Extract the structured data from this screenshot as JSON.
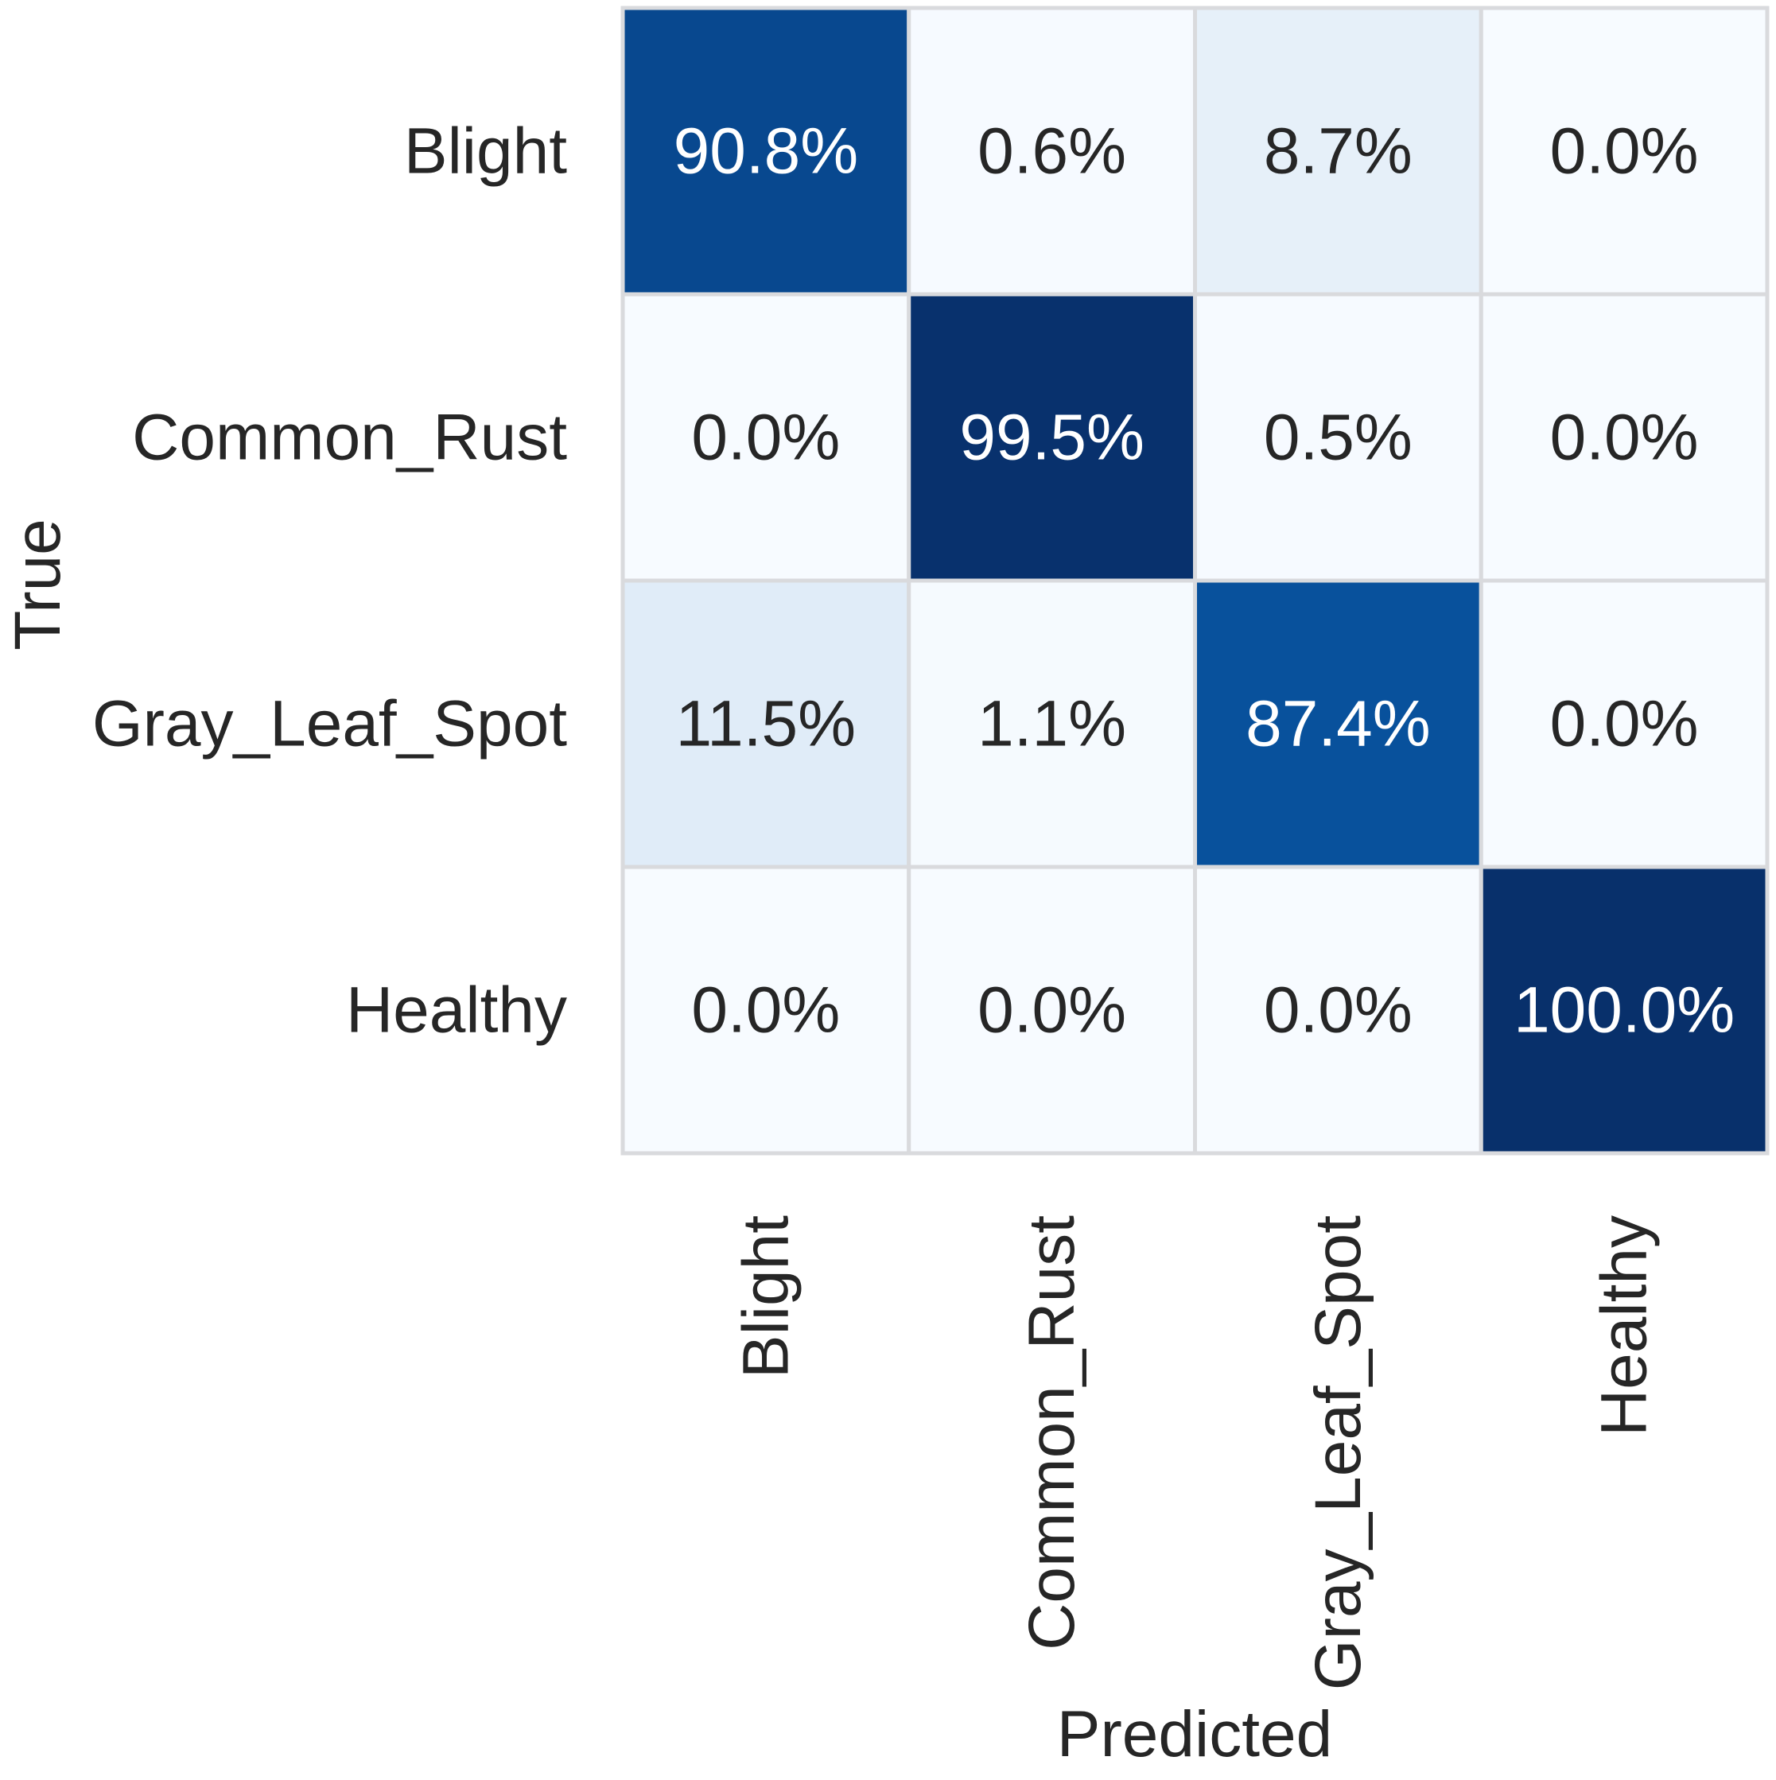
{
  "chart_data": {
    "type": "heatmap",
    "title": "",
    "xlabel": "Predicted",
    "ylabel": "True",
    "x_categories": [
      "Blight",
      "Common_Rust",
      "Gray_Leaf_Spot",
      "Healthy"
    ],
    "y_categories": [
      "Blight",
      "Common_Rust",
      "Gray_Leaf_Spot",
      "Healthy"
    ],
    "values": [
      [
        90.8,
        0.6,
        8.7,
        0.0
      ],
      [
        0.0,
        99.5,
        0.5,
        0.0
      ],
      [
        11.5,
        1.1,
        87.4,
        0.0
      ],
      [
        0.0,
        0.0,
        0.0,
        100.0
      ]
    ],
    "value_labels": [
      [
        "90.8%",
        "0.6%",
        "8.7%",
        "0.0%"
      ],
      [
        "0.0%",
        "99.5%",
        "0.5%",
        "0.0%"
      ],
      [
        "11.5%",
        "1.1%",
        "87.4%",
        "0.0%"
      ],
      [
        "0.0%",
        "0.0%",
        "0.0%",
        "100.0%"
      ]
    ],
    "value_range": [
      0,
      100
    ],
    "colormap": "Blues",
    "colorbar": false,
    "grid": true,
    "colors": {
      "cell_border": "#d9dadd",
      "text_dark": "#262626",
      "text_light": "#ffffff",
      "low": "#f7fbff",
      "high": "#08306b"
    }
  }
}
